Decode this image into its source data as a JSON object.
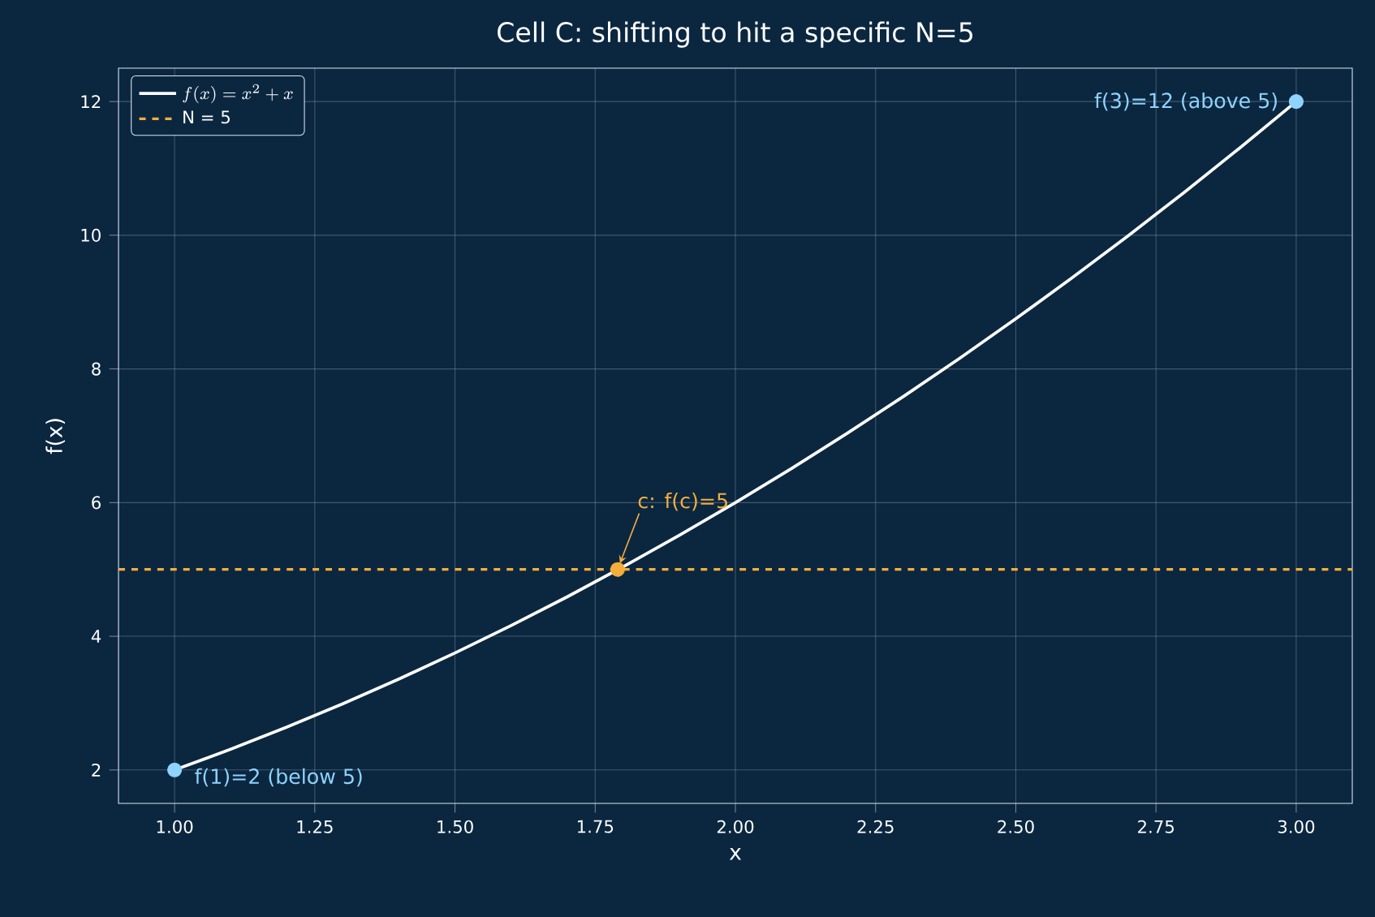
{
  "chart_data": {
    "type": "line",
    "title": "Cell C: shifting to hit a specific N=5",
    "xlabel": "x",
    "ylabel": "f(x)",
    "xlim": [
      0.9,
      3.1
    ],
    "ylim": [
      1.5,
      12.5
    ],
    "xticks": [
      {
        "value": 1,
        "label": "1.00"
      },
      {
        "value": 1.25,
        "label": "1.25"
      },
      {
        "value": 1.5,
        "label": "1.50"
      },
      {
        "value": 1.75,
        "label": "1.75"
      },
      {
        "value": 2,
        "label": "2.00"
      },
      {
        "value": 2.25,
        "label": "2.25"
      },
      {
        "value": 2.5,
        "label": "2.50"
      },
      {
        "value": 2.75,
        "label": "2.75"
      },
      {
        "value": 3,
        "label": "3.00"
      }
    ],
    "yticks": [
      2,
      4,
      6,
      8,
      10,
      12
    ],
    "grid": true,
    "legend": "top left",
    "series": [
      {
        "name": "f(x) = x^2 + x",
        "color": "#ffffff",
        "line_style": "solid",
        "x": [
          1.0,
          1.1,
          1.2,
          1.3,
          1.4,
          1.5,
          1.6,
          1.7,
          1.8,
          1.9,
          2.0,
          2.1,
          2.2,
          2.3,
          2.4,
          2.5,
          2.6,
          2.7,
          2.8,
          2.9,
          3.0
        ],
        "values": [
          2,
          2.31,
          2.64,
          2.99,
          3.36,
          3.75,
          4.16,
          4.59,
          5.04,
          5.51,
          6,
          6.51,
          7.04,
          7.59,
          8.16,
          8.75,
          9.36,
          9.99,
          10.64,
          11.31,
          12
        ]
      },
      {
        "type": "scatter",
        "color": "#8fd3fe",
        "x": [
          1,
          3
        ],
        "values": [
          2,
          12
        ]
      },
      {
        "type": "scatter",
        "color": "#f5ad3c",
        "x": [
          1.79
        ],
        "values": [
          5
        ]
      }
    ],
    "ref_lines": [
      {
        "axis": "y",
        "value": 5,
        "label": "N = 5",
        "color": "#f5ad3c",
        "line_style": "dashed"
      }
    ],
    "annotations": [
      {
        "text": "f(1)=2 (below 5)",
        "x": 1,
        "y": 2
      },
      {
        "text": "f(3)=12 (above 5)",
        "x": 3,
        "y": 12
      },
      {
        "text": "c: f(c)=5",
        "x": 1.79,
        "y": 5
      }
    ]
  }
}
